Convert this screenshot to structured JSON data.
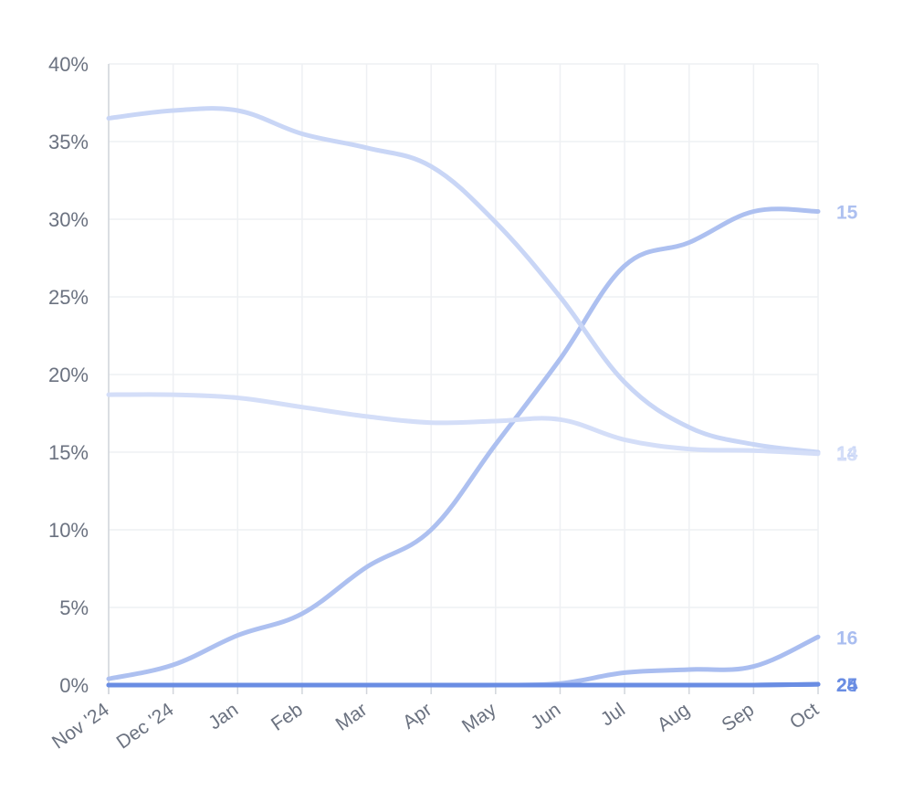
{
  "chart_data": {
    "type": "line",
    "x": [
      "Nov '24",
      "Dec '24",
      "Jan",
      "Feb",
      "Mar",
      "Apr",
      "May",
      "Jun",
      "Jul",
      "Aug",
      "Sep",
      "Oct"
    ],
    "y_ticks": [
      "0%",
      "5%",
      "10%",
      "15%",
      "20%",
      "25%",
      "30%",
      "35%",
      "40%"
    ],
    "ylim": [
      0,
      40
    ],
    "grid": true,
    "series": [
      {
        "name": "15",
        "color": "#adc0f0",
        "values": [
          0.4,
          1.3,
          3.2,
          4.6,
          7.6,
          10.0,
          15.5,
          21.0,
          27.0,
          28.5,
          30.5,
          30.5
        ]
      },
      {
        "name": "14",
        "color": "#c9d6f6",
        "values": [
          36.5,
          37.0,
          37.0,
          35.5,
          34.6,
          33.4,
          29.8,
          25.0,
          19.5,
          16.6,
          15.5,
          15.0
        ]
      },
      {
        "name": "13",
        "color": "#d4def8",
        "values": [
          18.7,
          18.7,
          18.5,
          17.9,
          17.3,
          16.9,
          17.0,
          17.1,
          15.8,
          15.2,
          15.1,
          14.9
        ]
      },
      {
        "name": "16",
        "color": "#a9bdf0",
        "values": [
          0,
          0,
          0,
          0,
          0,
          0,
          0,
          0.1,
          0.8,
          1.0,
          1.2,
          3.1
        ]
      },
      {
        "name": "25",
        "color": "#7093e5",
        "values": [
          0,
          0,
          0,
          0,
          0,
          0,
          0,
          0,
          0,
          0,
          0,
          0.05
        ]
      },
      {
        "name": "24",
        "color": "#6a8de3",
        "values": [
          0,
          0,
          0,
          0,
          0,
          0,
          0,
          0,
          0,
          0,
          0,
          0.05
        ]
      }
    ]
  }
}
